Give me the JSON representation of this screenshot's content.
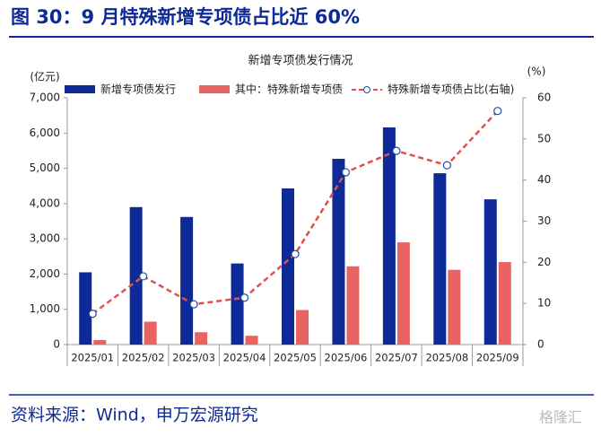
{
  "header": {
    "title": "图 30：9 月特殊新增专项债占比近 60%"
  },
  "chart_data": {
    "type": "bar-line",
    "title": "新增专项债发行情况",
    "y_label": "(亿元)",
    "y2_label": "(%)",
    "categories": [
      "2025/01",
      "2025/02",
      "2025/03",
      "2025/04",
      "2025/05",
      "2025/06",
      "2025/07",
      "2025/08",
      "2025/09"
    ],
    "series": [
      {
        "name": "新增专项债发行",
        "color": "#0d2a96",
        "type": "bar",
        "values": [
          2050,
          3900,
          3620,
          2300,
          4430,
          5270,
          6160,
          4860,
          4120
        ]
      },
      {
        "name": "其中：特殊新增专项债",
        "color": "#e86462",
        "type": "bar",
        "values": [
          130,
          650,
          350,
          250,
          980,
          2220,
          2900,
          2120,
          2340
        ]
      },
      {
        "name": "特殊新增专项债占比(右轴)",
        "color": "#e0504e",
        "type": "line",
        "axis": "y2",
        "values": [
          7.5,
          16.6,
          9.8,
          11.4,
          22.0,
          41.9,
          47.1,
          43.6,
          56.8
        ]
      }
    ],
    "ylim": [
      0,
      7000
    ],
    "yticks": [
      0,
      {
        "value": 1000,
        "label": "1,000"
      },
      {
        "value": 2000,
        "label": "2,000"
      },
      {
        "value": 3000,
        "label": "3,000"
      },
      {
        "value": 4000,
        "label": "4,000"
      },
      {
        "value": 5000,
        "label": "5,000"
      },
      {
        "value": 6000,
        "label": "6,000"
      },
      {
        "value": 7000,
        "label": "7,000"
      }
    ],
    "y2lim": [
      0,
      60
    ],
    "y2ticks": [
      0,
      10,
      20,
      30,
      40,
      50,
      60
    ],
    "legend": "top"
  },
  "footer": {
    "source": "资料来源：Wind，申万宏源研究",
    "watermark": "格隆汇"
  }
}
